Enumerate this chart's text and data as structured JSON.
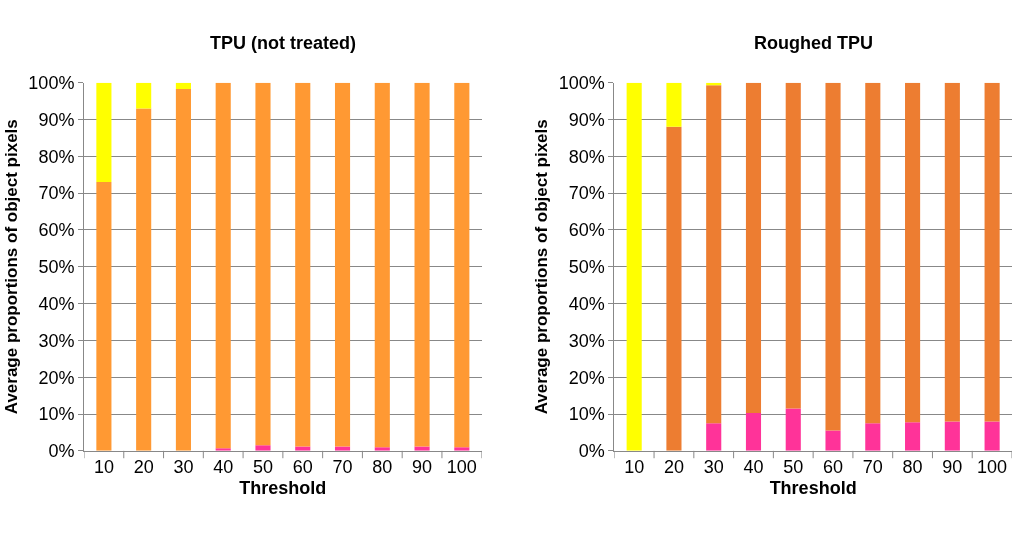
{
  "chart_data": [
    {
      "type": "bar",
      "title": "TPU (not treated)",
      "xlabel": "Threshold",
      "ylabel": "Average proportions of object pixels",
      "categories": [
        "10",
        "20",
        "30",
        "40",
        "50",
        "60",
        "70",
        "80",
        "90",
        "100"
      ],
      "stacked": true,
      "ylim": [
        0,
        100
      ],
      "yticks": [
        {
          "value": 0,
          "label": "0%"
        },
        {
          "value": 10,
          "label": "10%"
        },
        {
          "value": 20,
          "label": "20%"
        },
        {
          "value": 30,
          "label": "30%"
        },
        {
          "value": 40,
          "label": "40%"
        },
        {
          "value": 50,
          "label": "50%"
        },
        {
          "value": 60,
          "label": "60%"
        },
        {
          "value": 70,
          "label": "70%"
        },
        {
          "value": 80,
          "label": "80%"
        },
        {
          "value": 90,
          "label": "90%"
        },
        {
          "value": 100,
          "label": "100%"
        }
      ],
      "grid": "y",
      "series": [
        {
          "color": "#ff3399",
          "values": [
            0,
            0,
            0,
            0.7,
            1.5,
            1.2,
            1.2,
            1.0,
            1.2,
            1.0
          ]
        },
        {
          "color": "#ff9933",
          "values": [
            73,
            93,
            98.3,
            99.3,
            98.5,
            98.8,
            98.8,
            99,
            98.8,
            99
          ]
        },
        {
          "color": "#ffff00",
          "values": [
            27,
            7,
            1.7,
            0,
            0,
            0,
            0,
            0,
            0,
            0
          ]
        }
      ]
    },
    {
      "type": "bar",
      "title": "Roughed TPU",
      "xlabel": "Threshold",
      "ylabel": "Average proportions of object pixels",
      "categories": [
        "10",
        "20",
        "30",
        "40",
        "50",
        "60",
        "70",
        "80",
        "90",
        "100"
      ],
      "stacked": true,
      "ylim": [
        0,
        100
      ],
      "yticks": [
        {
          "value": 0,
          "label": "0%"
        },
        {
          "value": 10,
          "label": "10%"
        },
        {
          "value": 20,
          "label": "20%"
        },
        {
          "value": 30,
          "label": "30%"
        },
        {
          "value": 40,
          "label": "40%"
        },
        {
          "value": 50,
          "label": "50%"
        },
        {
          "value": 60,
          "label": "60%"
        },
        {
          "value": 70,
          "label": "70%"
        },
        {
          "value": 80,
          "label": "80%"
        },
        {
          "value": 90,
          "label": "90%"
        },
        {
          "value": 100,
          "label": "100%"
        }
      ],
      "grid": "y",
      "series": [
        {
          "color": "#ff3399",
          "values": [
            0,
            0,
            7.5,
            10.3,
            11.5,
            5.5,
            7.5,
            7.8,
            8,
            8
          ]
        },
        {
          "color": "#ed7d31",
          "values": [
            0,
            88,
            91.8,
            89.7,
            88.5,
            94.5,
            92.5,
            92.2,
            92,
            92
          ]
        },
        {
          "color": "#ffff00",
          "values": [
            100,
            12,
            0.7,
            0,
            0,
            0,
            0,
            0,
            0,
            0
          ]
        }
      ]
    }
  ]
}
